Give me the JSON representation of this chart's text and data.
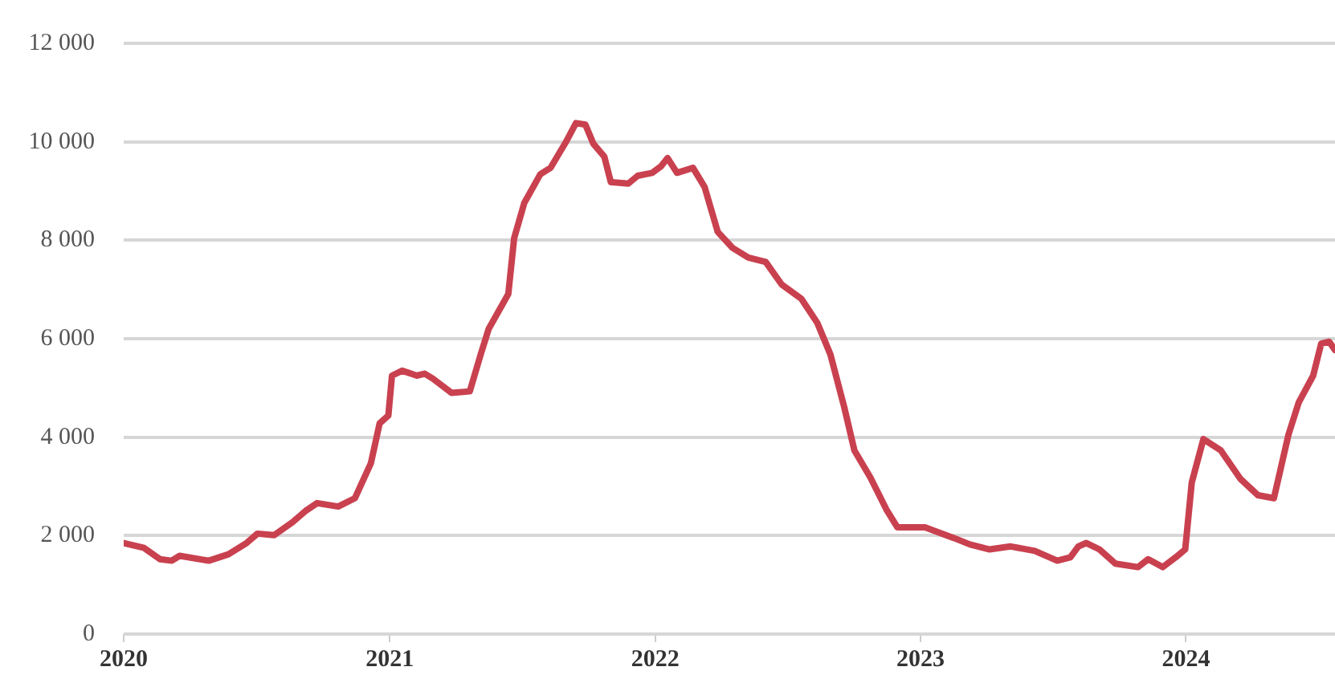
{
  "chart_data": {
    "type": "line",
    "x": [
      "2020-01-01",
      "2020-01-29",
      "2020-02-20",
      "2020-03-07",
      "2020-03-18",
      "2020-04-27",
      "2020-05-24",
      "2020-06-18",
      "2020-07-03",
      "2020-07-26",
      "2020-08-20",
      "2020-09-07",
      "2020-09-23",
      "2020-10-22",
      "2020-11-14",
      "2020-12-06",
      "2020-12-18",
      "2020-12-30",
      "2021-01-04",
      "2021-01-18",
      "2021-02-07",
      "2021-02-18",
      "2021-03-01",
      "2021-03-27",
      "2021-04-21",
      "2021-05-06",
      "2021-05-17",
      "2021-06-13",
      "2021-06-21",
      "2021-07-05",
      "2021-07-27",
      "2021-08-10",
      "2021-08-31",
      "2021-09-14",
      "2021-09-27",
      "2021-10-08",
      "2021-10-23",
      "2021-11-01",
      "2021-11-25",
      "2021-12-08",
      "2021-12-28",
      "2022-01-09",
      "2022-01-18",
      "2022-01-31",
      "2022-02-22",
      "2022-03-10",
      "2022-03-28",
      "2022-04-17",
      "2022-05-09",
      "2022-06-02",
      "2022-06-24",
      "2022-07-21",
      "2022-08-12",
      "2022-08-30",
      "2022-09-18",
      "2022-10-02",
      "2022-10-24",
      "2022-11-15",
      "2022-11-30",
      "2022-12-04",
      "2023-01-07",
      "2023-02-16",
      "2023-03-10",
      "2023-04-06",
      "2023-05-05",
      "2023-06-07",
      "2023-07-08",
      "2023-07-26",
      "2023-08-06",
      "2023-08-17",
      "2023-09-04",
      "2023-09-26",
      "2023-10-27",
      "2023-11-10",
      "2023-11-30",
      "2023-12-18",
      "2023-12-31",
      "2024-01-09",
      "2024-01-25",
      "2024-02-18",
      "2024-03-16",
      "2024-04-09",
      "2024-05-01",
      "2024-05-21",
      "2024-06-04",
      "2024-06-24",
      "2024-07-05",
      "2024-07-16",
      "2024-07-24"
    ],
    "series": [
      {
        "color": "#c9414f",
        "values": [
          1850,
          1750,
          1520,
          1490,
          1590,
          1490,
          1620,
          1850,
          2040,
          2010,
          2270,
          2500,
          2660,
          2590,
          2760,
          3470,
          4280,
          4440,
          5250,
          5350,
          5250,
          5290,
          5190,
          4900,
          4930,
          5680,
          6200,
          6910,
          8040,
          8760,
          9340,
          9470,
          9990,
          10380,
          10350,
          9960,
          9700,
          9180,
          9150,
          9310,
          9370,
          9500,
          9670,
          9370,
          9470,
          9080,
          8170,
          7850,
          7650,
          7560,
          7100,
          6810,
          6320,
          5680,
          4610,
          3730,
          3180,
          2530,
          2170,
          2170,
          2170,
          1950,
          1820,
          1720,
          1780,
          1690,
          1490,
          1560,
          1780,
          1850,
          1720,
          1430,
          1360,
          1520,
          1360,
          1560,
          1720,
          3080,
          3960,
          3730,
          3150,
          2820,
          2760,
          4050,
          4700,
          5250,
          5900,
          5940,
          5770
        ]
      }
    ],
    "xlim": [
      "2020-01-01",
      "2024-07-24"
    ],
    "xticks": [
      "2020",
      "2021",
      "2022",
      "2023",
      "2024"
    ],
    "ylim": [
      0,
      12000
    ],
    "yticks": [
      {
        "value": 0,
        "label": "0"
      },
      {
        "value": 2000,
        "label": "2 000"
      },
      {
        "value": 4000,
        "label": "4 000"
      },
      {
        "value": 6000,
        "label": "6 000"
      },
      {
        "value": 8000,
        "label": "8 000"
      },
      {
        "value": 10000,
        "label": "10 000"
      },
      {
        "value": 12000,
        "label": "12 000"
      }
    ],
    "grid": "y",
    "legend": false,
    "marker": "none",
    "line_style": "solid"
  }
}
